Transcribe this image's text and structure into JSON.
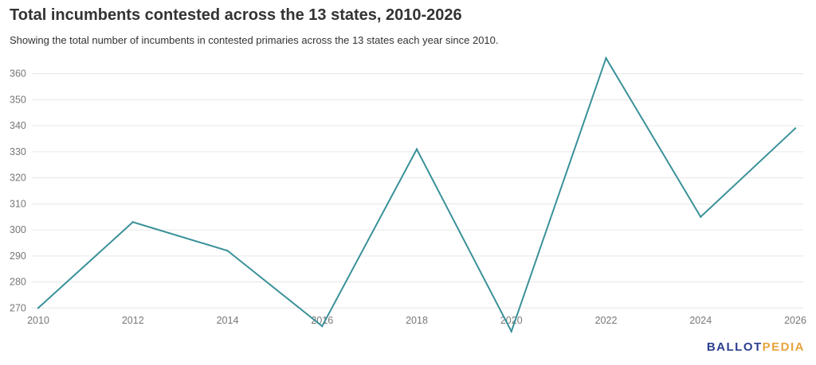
{
  "chart_data": {
    "type": "line",
    "title": "Total incumbents contested across the 13 states, 2010-2026",
    "subtitle": "Showing the total number of incumbents in contested primaries across the 13 states each year since 2010.",
    "xlabel": "",
    "ylabel": "",
    "x": [
      "2010",
      "2012",
      "2014",
      "2016",
      "2018",
      "2020",
      "2022",
      "2024",
      "2026"
    ],
    "series": [
      {
        "name": "Total incumbents contested",
        "values": [
          270,
          303,
          292,
          263,
          331,
          261,
          366,
          305,
          339
        ],
        "color": "#3a9199"
      }
    ],
    "yticks": [
      270,
      280,
      290,
      300,
      310,
      320,
      330,
      340,
      350,
      360
    ],
    "ylim": [
      260,
      370
    ],
    "grid": true,
    "legend": "none"
  },
  "branding": {
    "logo_part_1": "BALLOT",
    "logo_part_2": "PEDIA",
    "logo_color_1": "#2b3f8f",
    "logo_color_2": "#e8a33d"
  },
  "colors": {
    "gridline": "#e6e6e6",
    "tick_text": "#777777",
    "title_text": "#333333"
  }
}
